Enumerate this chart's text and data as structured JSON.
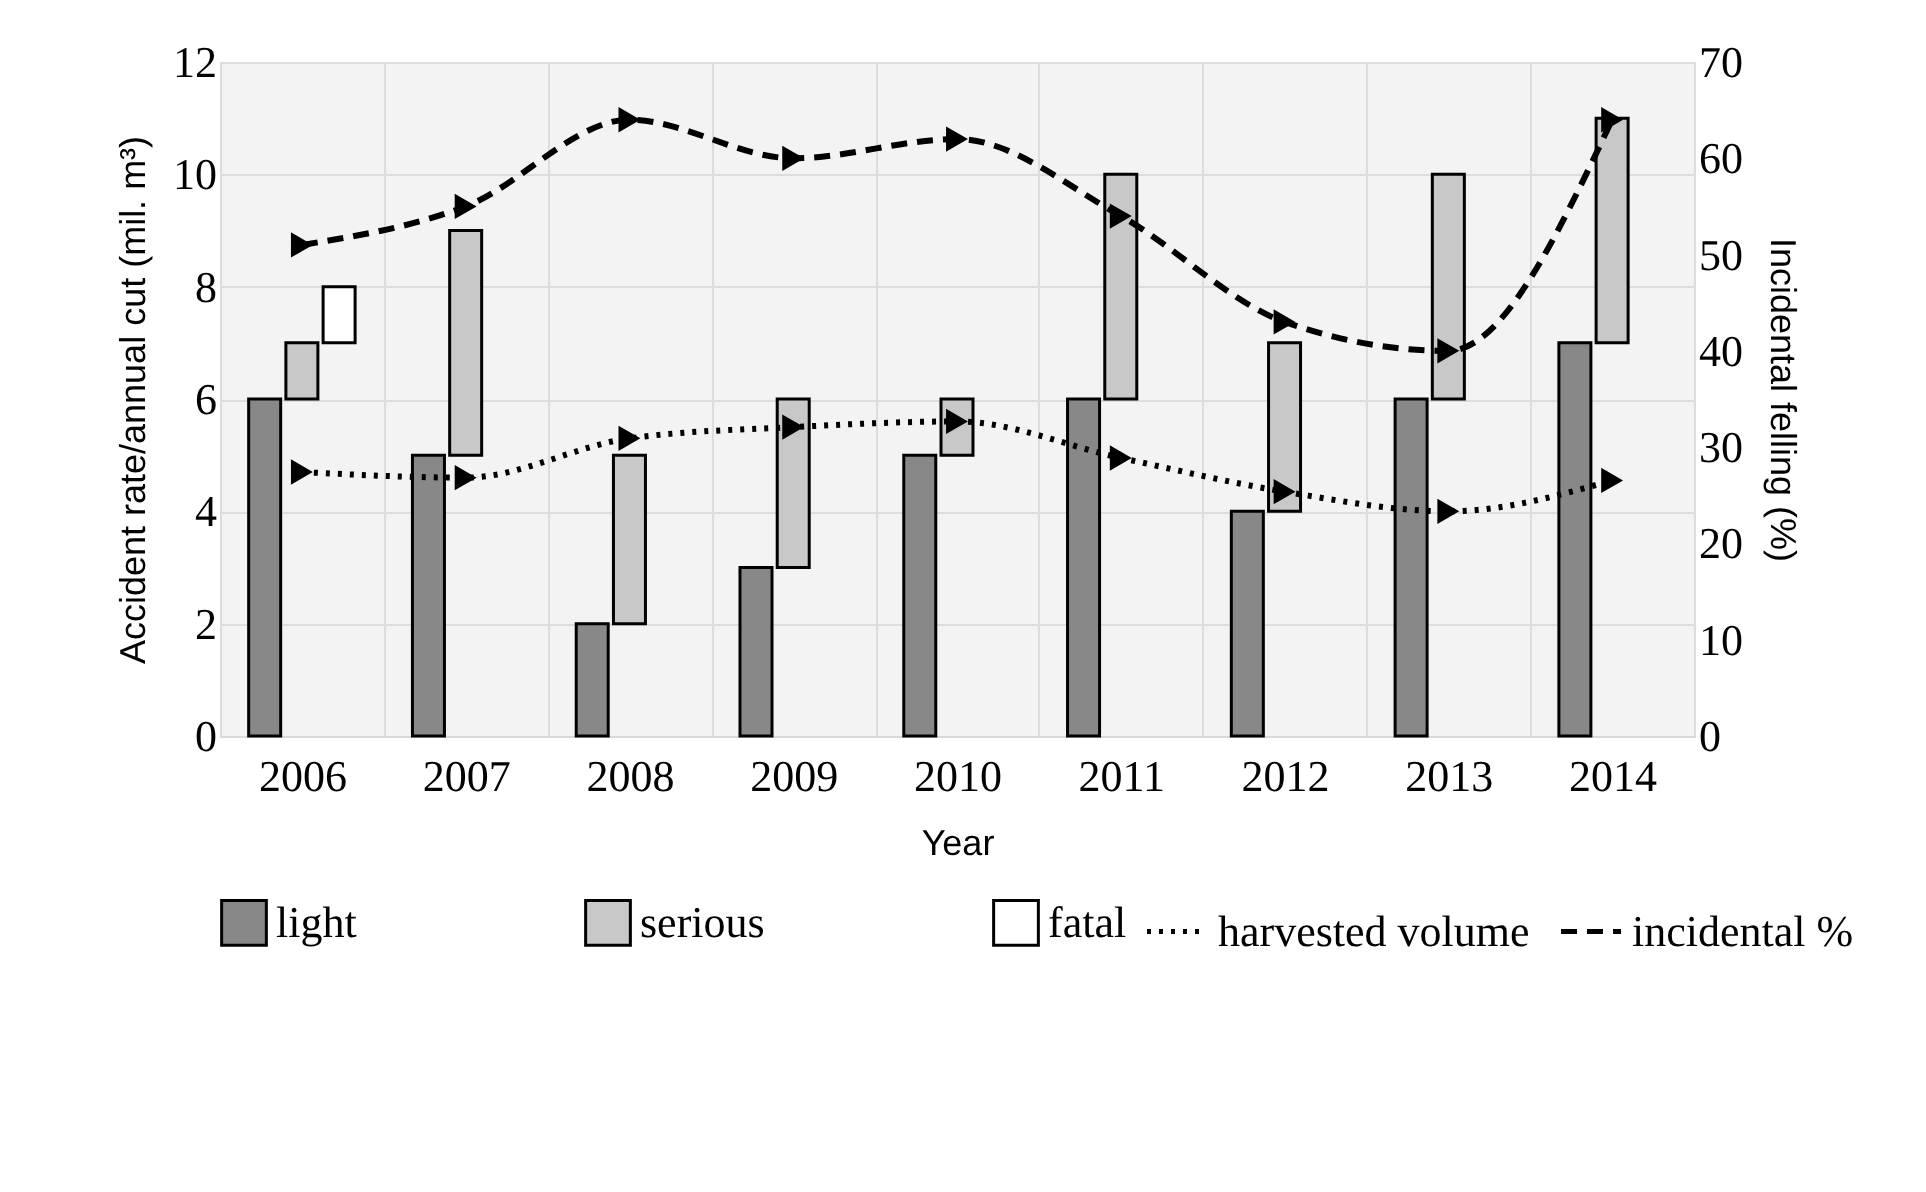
{
  "chart_data": {
    "type": "bar",
    "stacked": true,
    "xlabel": "Year",
    "ylabel": "Accident rate/annual cut (mil. m³)",
    "y2label": "Incidental felling (%)",
    "categories": [
      "2006",
      "2007",
      "2008",
      "2009",
      "2010",
      "2011",
      "2012",
      "2013",
      "2014"
    ],
    "series": [
      {
        "name": "light",
        "color": "#888888",
        "values": [
          6,
          5,
          2,
          3,
          5,
          6,
          4,
          6,
          7
        ]
      },
      {
        "name": "serious",
        "color": "#c8c8c8",
        "values": [
          1,
          4,
          3,
          3,
          1,
          4,
          3,
          4,
          4
        ]
      },
      {
        "name": "fatal",
        "color": "#ffffff",
        "values": [
          1,
          null,
          null,
          null,
          null,
          null,
          null,
          null,
          null
        ]
      },
      {
        "name": "harvested volume",
        "type": "line",
        "color": "#000000",
        "line_style": "dotted",
        "marker": "triangle",
        "values": [
          4.7,
          4.6,
          5.3,
          5.5,
          5.6,
          4.95,
          4.35,
          4.0,
          4.55
        ]
      },
      {
        "name": "incidental %",
        "type": "line",
        "axis": "y2",
        "color": "#000000",
        "line_style": "dashed",
        "marker": "triangle",
        "values": [
          51,
          55,
          64,
          60,
          62,
          54,
          43,
          40,
          64
        ]
      }
    ],
    "ylim": [
      0,
      12
    ],
    "yticks": [
      0,
      2,
      4,
      6,
      8,
      10,
      12
    ],
    "y2lim": [
      0,
      70
    ],
    "y2ticks": [
      0,
      10,
      20,
      30,
      40,
      50,
      60,
      70
    ],
    "grid": true,
    "legend": "bottom"
  }
}
